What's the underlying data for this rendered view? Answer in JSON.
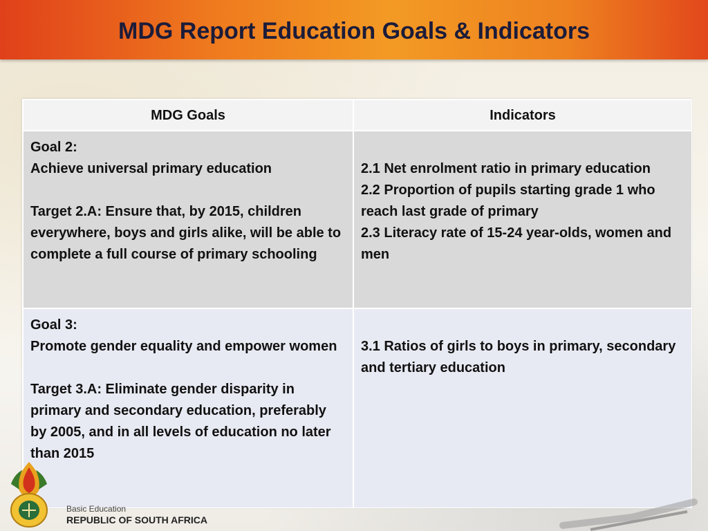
{
  "slide": {
    "title": "MDG Report Education Goals & Indicators"
  },
  "table": {
    "headers": [
      "MDG Goals",
      "Indicators"
    ],
    "rows": [
      {
        "goal_label": "Goal 2:",
        "goal_text": "Achieve universal primary education",
        "target": "Target 2.A: Ensure that, by 2015, children everywhere, boys and girls alike, will be able to complete a full course of primary schooling",
        "indicators": [
          "2.1 Net enrolment ratio in primary education",
          "2.2 Proportion of pupils starting grade 1 who reach last grade of primary",
          "2.3 Literacy rate of 15-24 year-olds, women and men"
        ]
      },
      {
        "goal_label": "Goal 3:",
        "goal_text": "Promote gender equality and empower women",
        "target": "Target 3.A: Eliminate gender disparity in primary and secondary education, preferably by 2005, and in all levels of education no later than 2015",
        "indicators": [
          "3.1 Ratios of girls to boys in primary, secondary and tertiary education"
        ]
      }
    ]
  },
  "footer": {
    "department": "Basic Education",
    "country": "REPUBLIC OF SOUTH AFRICA"
  },
  "colors": {
    "title_bar": "#ef7a1e",
    "header_row": "#f3f3f3",
    "row_1": "#d9d9d9",
    "row_2": "#e8eaf3"
  }
}
